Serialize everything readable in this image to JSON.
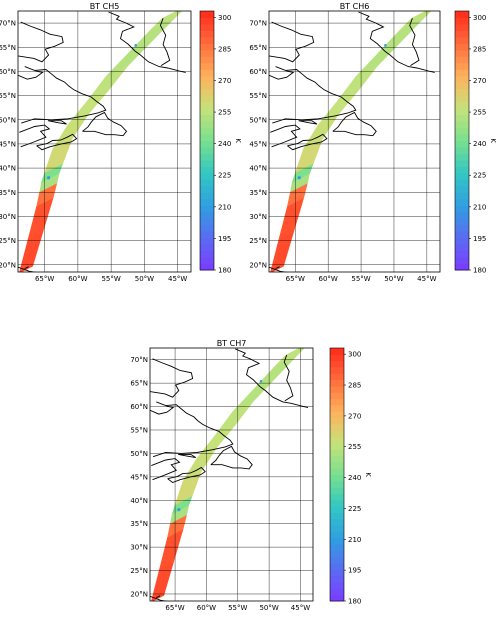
{
  "panels": [
    {
      "title": "BT CH5"
    },
    {
      "title": "BT CH6"
    },
    {
      "title": "BT CH7"
    }
  ],
  "lat_ticks": [
    "20°N",
    "25°N",
    "30°N",
    "35°N",
    "40°N",
    "45°N",
    "50°N",
    "55°N",
    "60°N",
    "65°N",
    "70°N"
  ],
  "lat_values": [
    20,
    25,
    30,
    35,
    40,
    45,
    50,
    55,
    60,
    65,
    70
  ],
  "lon_ticks": [
    "65°W",
    "60°W",
    "55°W",
    "50°W",
    "45°W"
  ],
  "lon_values": [
    -65,
    -60,
    -55,
    -50,
    -45
  ],
  "lat_range": [
    18.5,
    72.5
  ],
  "lon_range": [
    -69,
    -43
  ],
  "colorbar": {
    "label": "K",
    "min": 180,
    "max": 303,
    "ticks": [
      "180",
      "195",
      "210",
      "225",
      "240",
      "255",
      "270",
      "285",
      "300"
    ],
    "tick_values": [
      180,
      195,
      210,
      225,
      240,
      255,
      270,
      285,
      300
    ],
    "colors": [
      "#7b3bff",
      "#5a6cf2",
      "#2ea0e0",
      "#33c8c2",
      "#79e08e",
      "#c6e27a",
      "#ffb15c",
      "#ff6c3c",
      "#ff2a1a"
    ]
  },
  "swath": [
    {
      "lat": 19,
      "lon": -68,
      "bt": 296
    },
    {
      "lat": 26,
      "lon": -66.6,
      "bt": 295
    },
    {
      "lat": 33,
      "lon": -65.2,
      "bt": 293
    },
    {
      "lat": 36,
      "lon": -64.7,
      "bt": 280
    },
    {
      "lat": 38,
      "lon": -64.4,
      "bt": 222
    },
    {
      "lat": 40,
      "lon": -63.9,
      "bt": 262
    },
    {
      "lat": 45,
      "lon": -62.6,
      "bt": 258
    },
    {
      "lat": 50,
      "lon": -60.3,
      "bt": 258
    },
    {
      "lat": 55,
      "lon": -57.3,
      "bt": 256
    },
    {
      "lat": 60,
      "lon": -54.5,
      "bt": 255
    },
    {
      "lat": 65,
      "lon": -51.0,
      "bt": 252
    },
    {
      "lat": 70,
      "lon": -47.5,
      "bt": 255
    },
    {
      "lat": 72.3,
      "lon": -45.8,
      "bt": 256
    }
  ]
}
